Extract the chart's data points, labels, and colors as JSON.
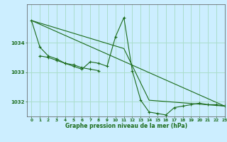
{
  "background_color": "#cceeff",
  "grid_color": "#aaddcc",
  "line_color": "#1a6b1a",
  "title": "Graphe pression niveau de la mer (hPa)",
  "xlim": [
    -0.5,
    23
  ],
  "ylim": [
    1031.5,
    1035.3
  ],
  "yticks": [
    1032,
    1033,
    1034
  ],
  "xticks": [
    0,
    1,
    2,
    3,
    4,
    5,
    6,
    7,
    8,
    9,
    10,
    11,
    12,
    13,
    14,
    15,
    16,
    17,
    18,
    19,
    20,
    21,
    22,
    23
  ],
  "series": [
    {
      "x": [
        0,
        1,
        2,
        3,
        4,
        5,
        6,
        7,
        8,
        9,
        10,
        11,
        12,
        13,
        14,
        15,
        16,
        17,
        18,
        19,
        20,
        21,
        22,
        23
      ],
      "y": [
        1034.75,
        1033.85,
        1033.55,
        1033.45,
        1033.3,
        1033.2,
        1033.1,
        1033.35,
        1033.3,
        1033.2,
        1034.2,
        1034.85,
        1033.05,
        1032.05,
        1031.65,
        1031.6,
        1031.55,
        1031.8,
        1031.85,
        1031.9,
        1031.95,
        1031.9,
        1031.9,
        1031.85
      ]
    },
    {
      "x": [
        0,
        23
      ],
      "y": [
        1034.75,
        1031.85
      ]
    },
    {
      "x": [
        0,
        11,
        14,
        23
      ],
      "y": [
        1034.75,
        1033.8,
        1032.05,
        1031.85
      ]
    },
    {
      "x": [
        1,
        2,
        3,
        4,
        5,
        6,
        7,
        8
      ],
      "y": [
        1033.55,
        1033.5,
        1033.4,
        1033.3,
        1033.25,
        1033.15,
        1033.1,
        1033.05
      ]
    }
  ]
}
